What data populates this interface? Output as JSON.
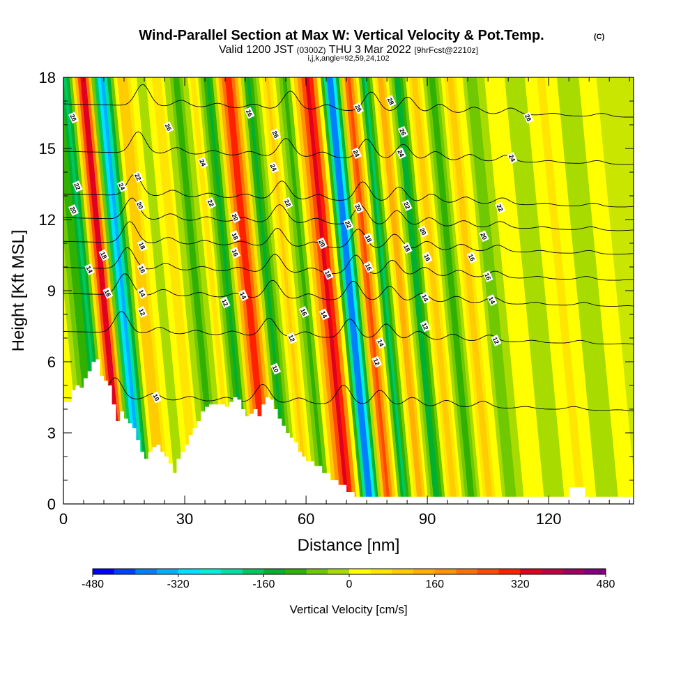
{
  "chart_data": {
    "type": "heatmap",
    "title": "Wind-Parallel Section at Max W: Vertical Velocity & Pot.Temp.",
    "title_mark": "(C)",
    "subtitle_parts": [
      "Valid 1200 JST",
      "(0300Z)",
      "THU 3 Mar 2022",
      "[9hrFcst@2210z]"
    ],
    "subtitle2": "i,j,k,angle=92,59,24,102",
    "xlabel": "Distance [nm]",
    "ylabel": "Height [Kft MSL]",
    "xlim": [
      0,
      141
    ],
    "ylim": [
      0,
      18
    ],
    "x_ticks": [
      0,
      30,
      60,
      90,
      120
    ],
    "y_ticks": [
      0,
      3,
      6,
      9,
      12,
      15,
      18
    ],
    "colorbar": {
      "title": "Vertical Velocity [cm/s]",
      "min": -480,
      "max": 480,
      "step": 40,
      "tick_values": [
        -480,
        -320,
        -160,
        0,
        160,
        320,
        480
      ],
      "colors": [
        "#0000ff",
        "#0040ff",
        "#0080ff",
        "#00b0ff",
        "#00e0ff",
        "#00f0d8",
        "#00e0a0",
        "#00c860",
        "#00b030",
        "#30b000",
        "#70c800",
        "#a8dc00",
        "#ffff00",
        "#ffe600",
        "#ffcc00",
        "#ffb000",
        "#ff9400",
        "#ff7000",
        "#ff4800",
        "#ff2000",
        "#e00020",
        "#c00040",
        "#a00060",
        "#800080"
      ]
    },
    "velocity_bands": [
      {
        "x": 6,
        "w": 0
      },
      {
        "x": 11,
        "w": -200
      },
      {
        "x": 14.5,
        "w": 400
      },
      {
        "x": 19,
        "w": -360
      },
      {
        "x": 24,
        "w": 120
      },
      {
        "x": 29,
        "w": -40
      },
      {
        "x": 33,
        "w": 80
      },
      {
        "x": 38,
        "w": -120
      },
      {
        "x": 42,
        "w": 80
      },
      {
        "x": 45.5,
        "w": -160
      },
      {
        "x": 51,
        "w": 340
      },
      {
        "x": 55,
        "w": -160
      },
      {
        "x": 60,
        "w": 100
      },
      {
        "x": 64.5,
        "w": -120
      },
      {
        "x": 71,
        "w": 360
      },
      {
        "x": 76,
        "w": -440
      },
      {
        "x": 80,
        "w": 280
      },
      {
        "x": 84.5,
        "w": -200
      },
      {
        "x": 88,
        "w": 160
      },
      {
        "x": 92.5,
        "w": -160
      },
      {
        "x": 96.5,
        "w": 120
      },
      {
        "x": 101,
        "w": -120
      },
      {
        "x": 105.5,
        "w": 120
      },
      {
        "x": 110,
        "w": -80
      },
      {
        "x": 116,
        "w": 40
      },
      {
        "x": 122,
        "w": -40
      },
      {
        "x": 128,
        "w": 60
      },
      {
        "x": 134,
        "w": -40
      },
      {
        "x": 139,
        "w": 20
      }
    ],
    "terrain_height_kft": [
      [
        0,
        4.3
      ],
      [
        1,
        4.3
      ],
      [
        2,
        4.8
      ],
      [
        3,
        5.0
      ],
      [
        4,
        4.9
      ],
      [
        5,
        5.3
      ],
      [
        6,
        5.6
      ],
      [
        7,
        6.0
      ],
      [
        8,
        6.1
      ],
      [
        9,
        5.4
      ],
      [
        10,
        5.2
      ],
      [
        11,
        5.0
      ],
      [
        12,
        4.2
      ],
      [
        13,
        3.5
      ],
      [
        14,
        3.9
      ],
      [
        15,
        3.6
      ],
      [
        16,
        3.4
      ],
      [
        17,
        3.2
      ],
      [
        18,
        2.7
      ],
      [
        19,
        2.2
      ],
      [
        20,
        1.9
      ],
      [
        21,
        2.2
      ],
      [
        22,
        2.4
      ],
      [
        23,
        2.5
      ],
      [
        24,
        2.2
      ],
      [
        25,
        2.0
      ],
      [
        26,
        1.7
      ],
      [
        27,
        1.3
      ],
      [
        28,
        1.9
      ],
      [
        29,
        2.2
      ],
      [
        30,
        2.5
      ],
      [
        31,
        2.9
      ],
      [
        32,
        3.2
      ],
      [
        33,
        3.5
      ],
      [
        34,
        3.9
      ],
      [
        35,
        4.1
      ],
      [
        36,
        4.2
      ],
      [
        37,
        4.2
      ],
      [
        38,
        4.2
      ],
      [
        39,
        4.2
      ],
      [
        40,
        4.1
      ],
      [
        41,
        4.3
      ],
      [
        42,
        4.5
      ],
      [
        43,
        4.4
      ],
      [
        44,
        4.0
      ],
      [
        45,
        3.7
      ],
      [
        46,
        3.8
      ],
      [
        47,
        4.0
      ],
      [
        48,
        3.7
      ],
      [
        49,
        4.2
      ],
      [
        50,
        4.5
      ],
      [
        51,
        4.4
      ],
      [
        52,
        4.0
      ],
      [
        53,
        3.6
      ],
      [
        54,
        3.3
      ],
      [
        55,
        3.0
      ],
      [
        56,
        2.8
      ],
      [
        57,
        2.6
      ],
      [
        58,
        2.2
      ],
      [
        59,
        2.0
      ],
      [
        60,
        1.8
      ],
      [
        62,
        1.6
      ],
      [
        64,
        1.3
      ],
      [
        66,
        1.0
      ],
      [
        68,
        0.8
      ],
      [
        70,
        0.5
      ],
      [
        72,
        0.3
      ],
      [
        74,
        0.3
      ],
      [
        124,
        0.3
      ],
      [
        125,
        0.7
      ],
      [
        128,
        0.7
      ],
      [
        129,
        0.3
      ],
      [
        140,
        0.3
      ],
      [
        141,
        0.0
      ]
    ],
    "theta_contours": [
      {
        "label": "10",
        "base": 4.2
      },
      {
        "label": "12",
        "base": 7.0
      },
      {
        "label": "14",
        "base": 8.6
      },
      {
        "label": "16",
        "base": 9.7
      },
      {
        "label": "18",
        "base": 10.8
      },
      {
        "label": "20",
        "base": 11.8
      },
      {
        "label": "22",
        "base": 12.8
      },
      {
        "label": "24",
        "base": 14.6
      },
      {
        "label": "26",
        "base": 16.6
      }
    ],
    "contour_labels": [
      {
        "t": "26",
        "x": 2.5,
        "y": 16.3
      },
      {
        "t": "22",
        "x": 3.5,
        "y": 13.4
      },
      {
        "t": "20",
        "x": 2.5,
        "y": 12.4
      },
      {
        "t": "14",
        "x": 6.5,
        "y": 9.9
      },
      {
        "t": "18",
        "x": 10,
        "y": 10.5
      },
      {
        "t": "16",
        "x": 11,
        "y": 8.9
      },
      {
        "t": "24",
        "x": 14.5,
        "y": 13.4
      },
      {
        "t": "22",
        "x": 18.5,
        "y": 13.8
      },
      {
        "t": "20",
        "x": 19,
        "y": 12.6
      },
      {
        "t": "18",
        "x": 19.5,
        "y": 10.9
      },
      {
        "t": "16",
        "x": 19.5,
        "y": 9.9
      },
      {
        "t": "14",
        "x": 19.5,
        "y": 8.9
      },
      {
        "t": "12",
        "x": 19.5,
        "y": 8.1
      },
      {
        "t": "10",
        "x": 23,
        "y": 4.5
      },
      {
        "t": "26",
        "x": 26,
        "y": 15.9
      },
      {
        "t": "24",
        "x": 34.5,
        "y": 14.4
      },
      {
        "t": "22",
        "x": 36.5,
        "y": 12.7
      },
      {
        "t": "20",
        "x": 42.5,
        "y": 12.1
      },
      {
        "t": "18",
        "x": 42.5,
        "y": 11.3
      },
      {
        "t": "16",
        "x": 42.5,
        "y": 10.6
      },
      {
        "t": "14",
        "x": 44.5,
        "y": 8.8
      },
      {
        "t": "12",
        "x": 40,
        "y": 8.5
      },
      {
        "t": "26",
        "x": 46,
        "y": 16.5
      },
      {
        "t": "26",
        "x": 52.5,
        "y": 15.6
      },
      {
        "t": "24",
        "x": 52,
        "y": 14.2
      },
      {
        "t": "22",
        "x": 55.5,
        "y": 12.7
      },
      {
        "t": "10",
        "x": 52.5,
        "y": 5.7
      },
      {
        "t": "12",
        "x": 56.5,
        "y": 7.0
      },
      {
        "t": "16",
        "x": 59.5,
        "y": 8.1
      },
      {
        "t": "14",
        "x": 64.5,
        "y": 8.0
      },
      {
        "t": "20",
        "x": 64,
        "y": 11.0
      },
      {
        "t": "18",
        "x": 65.5,
        "y": 9.7
      },
      {
        "t": "26",
        "x": 73,
        "y": 16.7
      },
      {
        "t": "24",
        "x": 72.5,
        "y": 14.8
      },
      {
        "t": "22",
        "x": 70.5,
        "y": 11.8
      },
      {
        "t": "20",
        "x": 73,
        "y": 12.5
      },
      {
        "t": "18",
        "x": 75.5,
        "y": 11.2
      },
      {
        "t": "16",
        "x": 75.5,
        "y": 10.0
      },
      {
        "t": "14",
        "x": 78.5,
        "y": 6.8
      },
      {
        "t": "12",
        "x": 77.5,
        "y": 6.0
      },
      {
        "t": "28",
        "x": 81,
        "y": 17.0
      },
      {
        "t": "26",
        "x": 84,
        "y": 15.7
      },
      {
        "t": "24",
        "x": 83.5,
        "y": 14.8
      },
      {
        "t": "22",
        "x": 85,
        "y": 12.6
      },
      {
        "t": "20",
        "x": 89,
        "y": 11.5
      },
      {
        "t": "18",
        "x": 85,
        "y": 10.8
      },
      {
        "t": "16",
        "x": 90,
        "y": 10.4
      },
      {
        "t": "14",
        "x": 89.5,
        "y": 8.7
      },
      {
        "t": "12",
        "x": 89.5,
        "y": 7.5
      },
      {
        "t": "20",
        "x": 104,
        "y": 11.3
      },
      {
        "t": "16",
        "x": 101,
        "y": 10.4
      },
      {
        "t": "16",
        "x": 105,
        "y": 9.6
      },
      {
        "t": "14",
        "x": 106,
        "y": 8.6
      },
      {
        "t": "12",
        "x": 107,
        "y": 6.9
      },
      {
        "t": "22",
        "x": 108,
        "y": 12.5
      },
      {
        "t": "24",
        "x": 111,
        "y": 14.6
      },
      {
        "t": "26",
        "x": 115,
        "y": 16.3
      }
    ]
  }
}
